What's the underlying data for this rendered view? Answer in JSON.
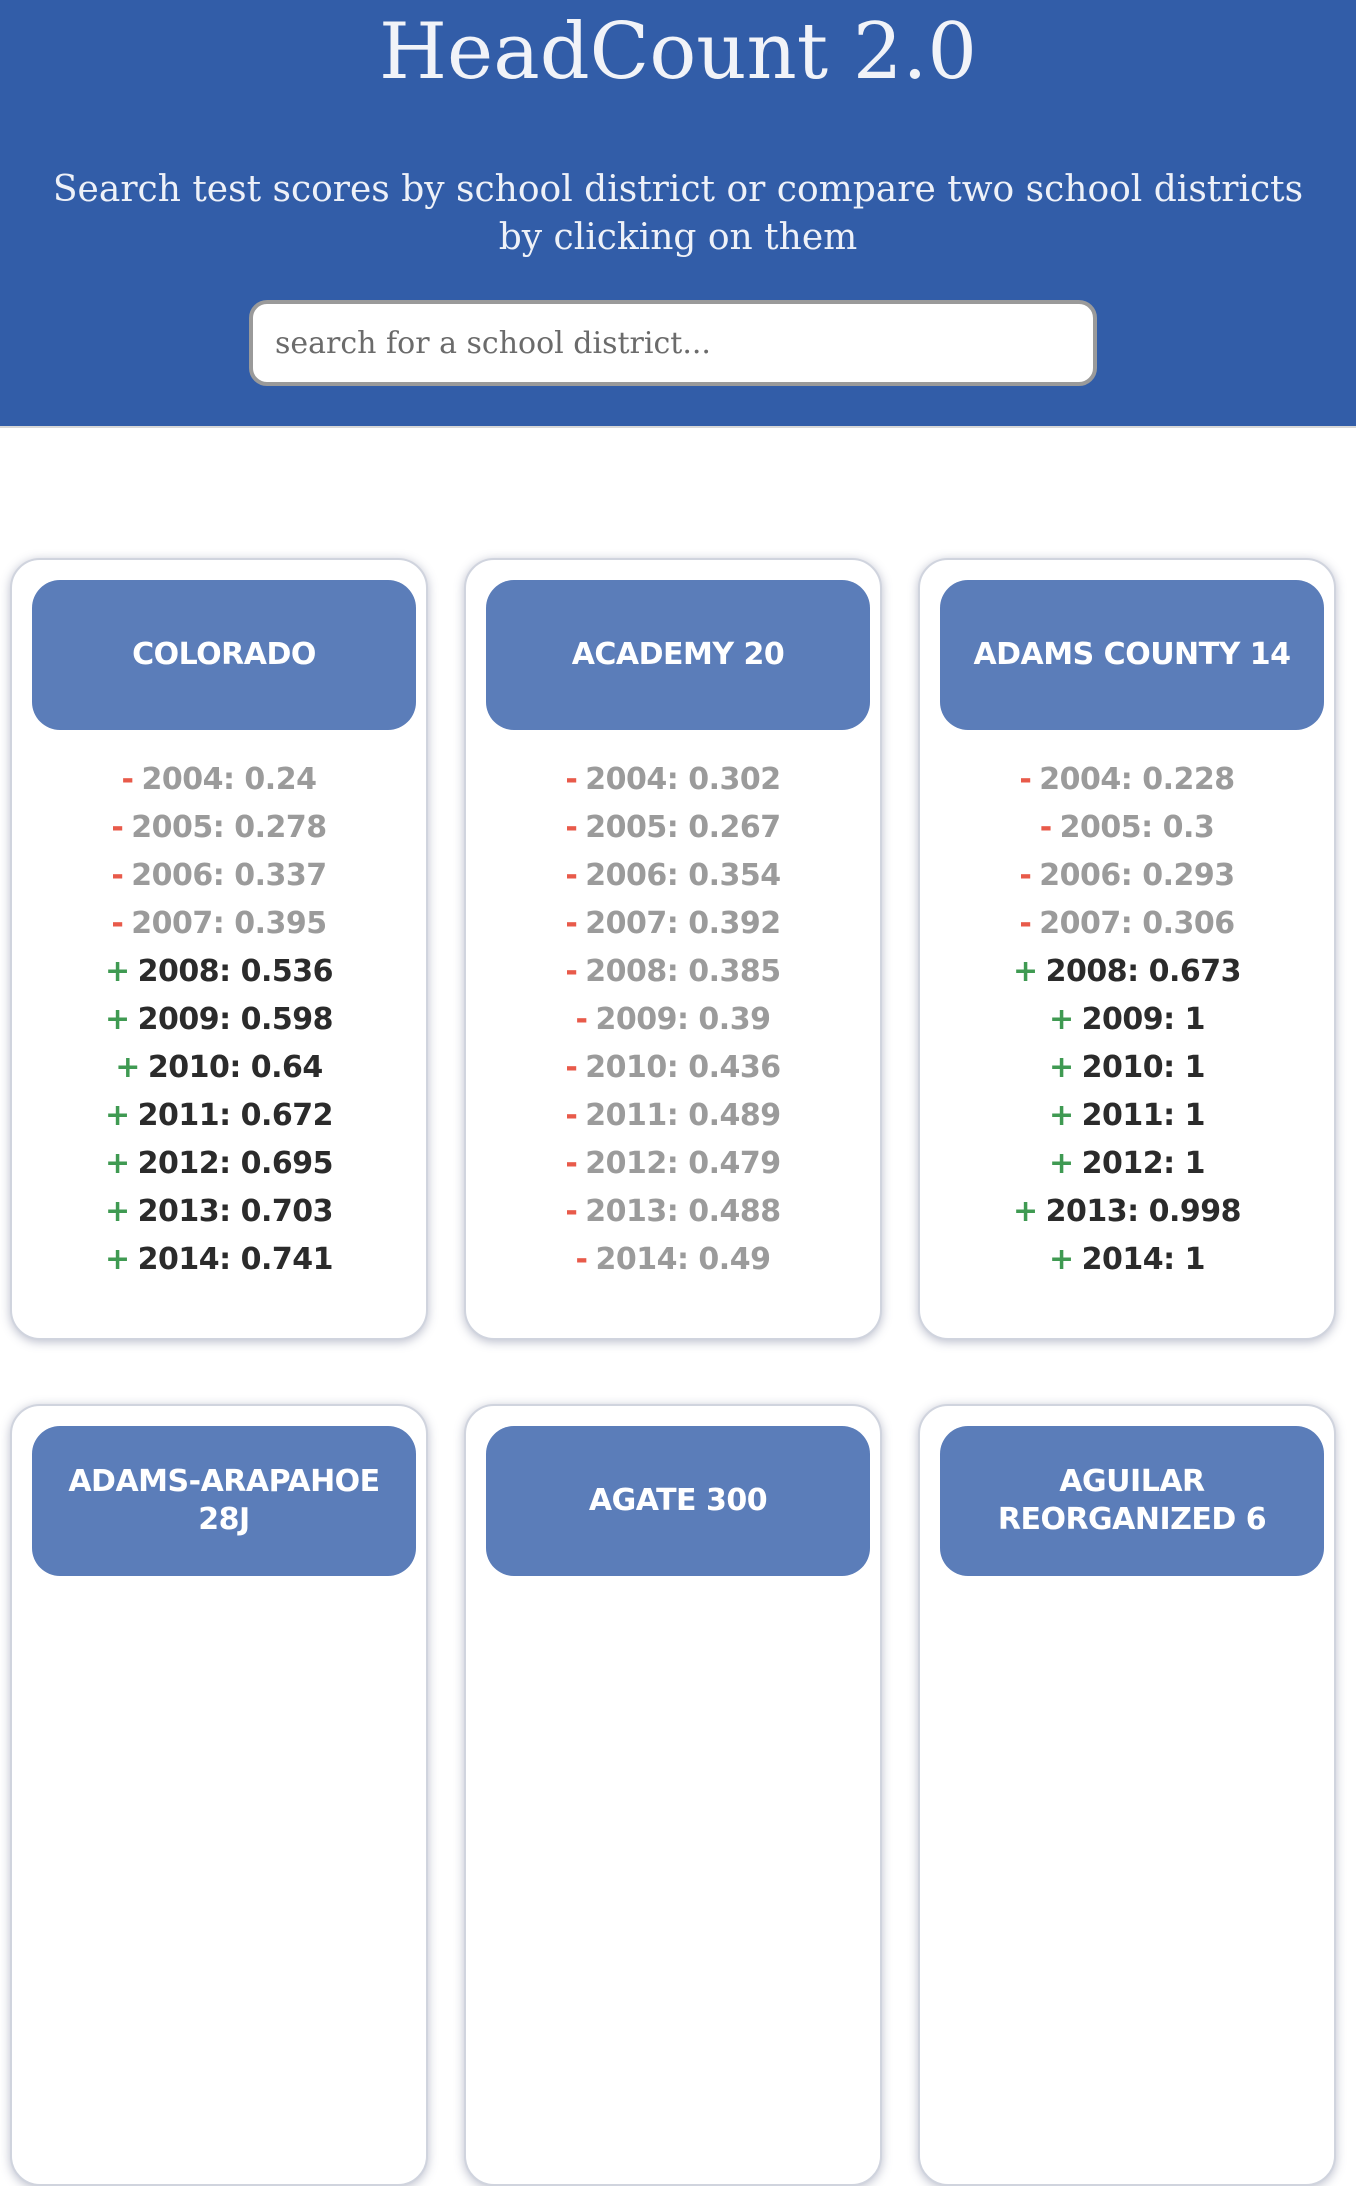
{
  "header": {
    "title": "HeadCount 2.0",
    "subtitle": "Search test scores by school district or compare two school districts by clicking on them",
    "search_placeholder": "search for a school district..."
  },
  "colors": {
    "header_bg": "#325da8",
    "card_header_bg": "#5b7db9",
    "below_sign": "#e85a4a",
    "above_sign": "#3f9a52"
  },
  "cards": [
    {
      "name": "COLORADO",
      "rows": [
        {
          "sign": "-",
          "text": "2004: 0.24",
          "status": "low"
        },
        {
          "sign": "-",
          "text": "2005: 0.278",
          "status": "low"
        },
        {
          "sign": "-",
          "text": "2006: 0.337",
          "status": "low"
        },
        {
          "sign": "-",
          "text": "2007: 0.395",
          "status": "low"
        },
        {
          "sign": "+",
          "text": "2008: 0.536",
          "status": "high"
        },
        {
          "sign": "+",
          "text": "2009: 0.598",
          "status": "high"
        },
        {
          "sign": "+",
          "text": "2010: 0.64",
          "status": "high"
        },
        {
          "sign": "+",
          "text": "2011: 0.672",
          "status": "high"
        },
        {
          "sign": "+",
          "text": "2012: 0.695",
          "status": "high"
        },
        {
          "sign": "+",
          "text": "2013: 0.703",
          "status": "high"
        },
        {
          "sign": "+",
          "text": "2014: 0.741",
          "status": "high"
        }
      ]
    },
    {
      "name": "ACADEMY 20",
      "rows": [
        {
          "sign": "-",
          "text": "2004: 0.302",
          "status": "low"
        },
        {
          "sign": "-",
          "text": "2005: 0.267",
          "status": "low"
        },
        {
          "sign": "-",
          "text": "2006: 0.354",
          "status": "low"
        },
        {
          "sign": "-",
          "text": "2007: 0.392",
          "status": "low"
        },
        {
          "sign": "-",
          "text": "2008: 0.385",
          "status": "low"
        },
        {
          "sign": "-",
          "text": "2009: 0.39",
          "status": "low"
        },
        {
          "sign": "-",
          "text": "2010: 0.436",
          "status": "low"
        },
        {
          "sign": "-",
          "text": "2011: 0.489",
          "status": "low"
        },
        {
          "sign": "-",
          "text": "2012: 0.479",
          "status": "low"
        },
        {
          "sign": "-",
          "text": "2013: 0.488",
          "status": "low"
        },
        {
          "sign": "-",
          "text": "2014: 0.49",
          "status": "low"
        }
      ]
    },
    {
      "name": "ADAMS COUNTY 14",
      "rows": [
        {
          "sign": "-",
          "text": "2004: 0.228",
          "status": "low"
        },
        {
          "sign": "-",
          "text": "2005: 0.3",
          "status": "low"
        },
        {
          "sign": "-",
          "text": "2006: 0.293",
          "status": "low"
        },
        {
          "sign": "-",
          "text": "2007: 0.306",
          "status": "low"
        },
        {
          "sign": "+",
          "text": "2008: 0.673",
          "status": "high"
        },
        {
          "sign": "+",
          "text": "2009: 1",
          "status": "high"
        },
        {
          "sign": "+",
          "text": "2010: 1",
          "status": "high"
        },
        {
          "sign": "+",
          "text": "2011: 1",
          "status": "high"
        },
        {
          "sign": "+",
          "text": "2012: 1",
          "status": "high"
        },
        {
          "sign": "+",
          "text": "2013: 0.998",
          "status": "high"
        },
        {
          "sign": "+",
          "text": "2014: 1",
          "status": "high"
        }
      ]
    },
    {
      "name": "ADAMS-ARAPAHOE 28J",
      "rows": []
    },
    {
      "name": "AGATE 300",
      "rows": []
    },
    {
      "name": "AGUILAR REORGANIZED 6",
      "rows": []
    }
  ]
}
